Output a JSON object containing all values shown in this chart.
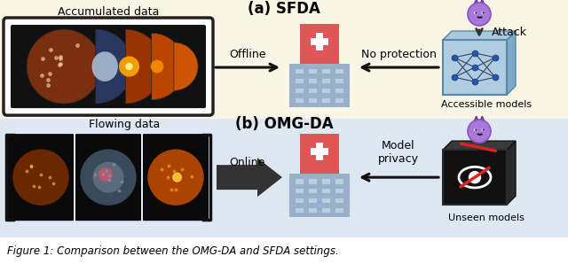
{
  "bg_top": "#faf5e4",
  "bg_bottom": "#dde8f2",
  "title_top": "(a) SFDA",
  "title_bottom": "(b) OMG-DA",
  "label_top_data": "Accumulated data",
  "label_bottom_data": "Flowing data",
  "label_offline": "Offline",
  "label_online": "Online",
  "label_no_protection": "No protection",
  "label_model_privacy": "Model\nprivacy",
  "label_accessible": "Accessible models",
  "label_unseen": "Unseen models",
  "label_attack": "Attack",
  "caption": "Figure 1: Comparison between the OMG-DA and SFDA settings.",
  "fig_width": 6.4,
  "fig_height": 2.98,
  "hospital_red": "#e05555",
  "hospital_grey": "#9ab0c8",
  "hospital_win": "#b8cfe0"
}
